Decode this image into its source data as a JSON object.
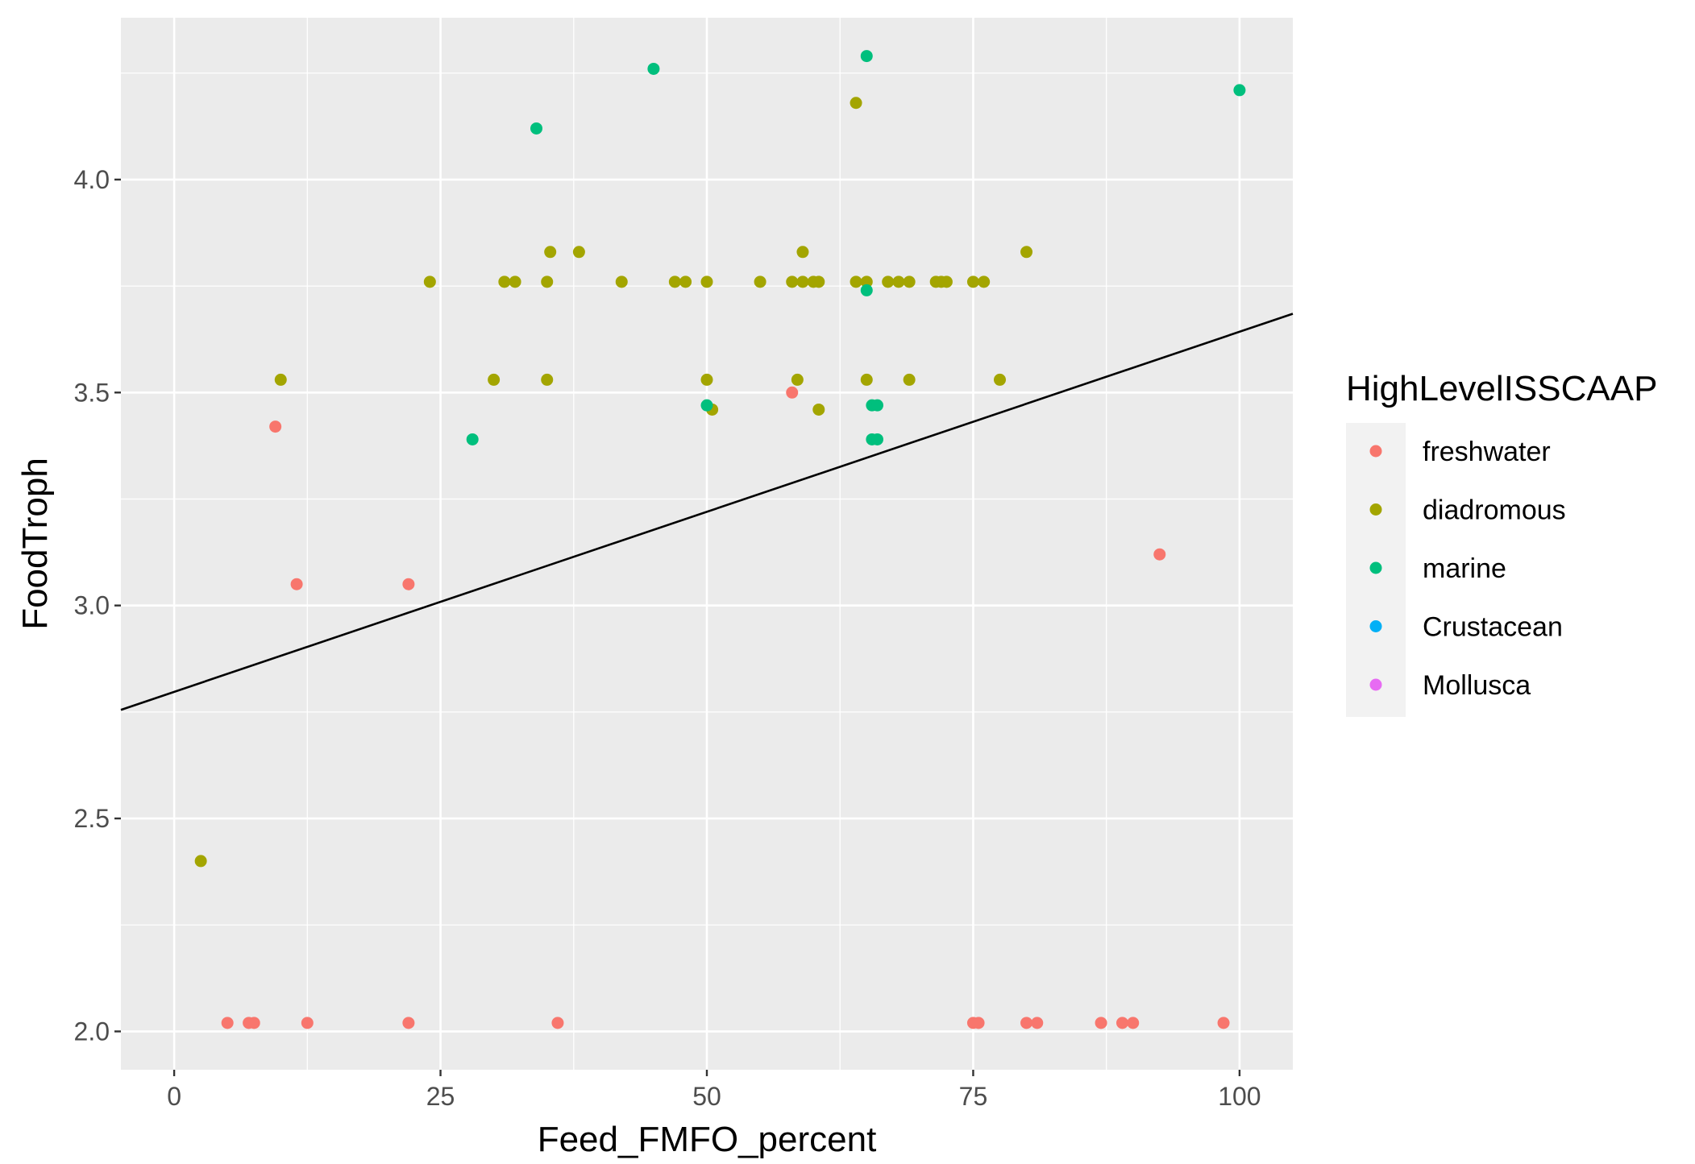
{
  "chart_data": {
    "type": "scatter",
    "xlabel": "Feed_FMFO_percent",
    "ylabel": "FoodTroph",
    "xlim": [
      -5,
      105
    ],
    "ylim": [
      1.91,
      4.38
    ],
    "x_ticks": [
      0,
      25,
      50,
      75,
      100
    ],
    "x_tick_labels": [
      "0",
      "25",
      "50",
      "75",
      "100"
    ],
    "y_ticks": [
      2.0,
      2.5,
      3.0,
      3.5,
      4.0
    ],
    "y_tick_labels": [
      "2.0",
      "2.5",
      "3.0",
      "3.5",
      "4.0"
    ],
    "grid": true,
    "legend": {
      "title": "HighLevelISSCAAP",
      "position": "right",
      "entries": [
        {
          "name": "freshwater",
          "color": "#F8766D"
        },
        {
          "name": "diadromous",
          "color": "#A3A500"
        },
        {
          "name": "marine",
          "color": "#00BF7D"
        },
        {
          "name": "Crustacean",
          "color": "#00B0F6"
        },
        {
          "name": "Mollusca",
          "color": "#E76BF3"
        }
      ]
    },
    "trend_line": {
      "x": [
        -5,
        105
      ],
      "y": [
        2.755,
        3.685
      ],
      "color": "#000000"
    },
    "series": [
      {
        "name": "freshwater",
        "color": "#F8766D",
        "points": [
          [
            9.5,
            3.42
          ],
          [
            11.5,
            3.05
          ],
          [
            22,
            3.05
          ],
          [
            58,
            3.5
          ],
          [
            92.5,
            3.12
          ],
          [
            5,
            2.02
          ],
          [
            7,
            2.02
          ],
          [
            7.5,
            2.02
          ],
          [
            12.5,
            2.02
          ],
          [
            22,
            2.02
          ],
          [
            36,
            2.02
          ],
          [
            75,
            2.02
          ],
          [
            75.5,
            2.02
          ],
          [
            80,
            2.02
          ],
          [
            81,
            2.02
          ],
          [
            87,
            2.02
          ],
          [
            89,
            2.02
          ],
          [
            90,
            2.02
          ],
          [
            98.5,
            2.02
          ]
        ]
      },
      {
        "name": "diadromous",
        "color": "#A3A500",
        "points": [
          [
            2.5,
            2.4
          ],
          [
            10,
            3.53
          ],
          [
            24,
            3.76
          ],
          [
            30,
            3.53
          ],
          [
            31,
            3.76
          ],
          [
            32,
            3.76
          ],
          [
            35,
            3.53
          ],
          [
            35,
            3.76
          ],
          [
            35.3,
            3.83
          ],
          [
            38,
            3.83
          ],
          [
            42,
            3.76
          ],
          [
            47,
            3.76
          ],
          [
            48,
            3.76
          ],
          [
            50,
            3.76
          ],
          [
            50,
            3.53
          ],
          [
            50.5,
            3.46
          ],
          [
            55,
            3.76
          ],
          [
            58,
            3.76
          ],
          [
            58.5,
            3.53
          ],
          [
            59,
            3.76
          ],
          [
            59,
            3.83
          ],
          [
            60,
            3.76
          ],
          [
            60.5,
            3.76
          ],
          [
            60.5,
            3.46
          ],
          [
            64,
            4.18
          ],
          [
            64,
            3.76
          ],
          [
            65,
            3.76
          ],
          [
            65,
            3.53
          ],
          [
            67,
            3.76
          ],
          [
            68,
            3.76
          ],
          [
            69,
            3.76
          ],
          [
            69,
            3.53
          ],
          [
            71.5,
            3.76
          ],
          [
            72,
            3.76
          ],
          [
            72.5,
            3.76
          ],
          [
            75,
            3.76
          ],
          [
            76,
            3.76
          ],
          [
            77.5,
            3.53
          ],
          [
            80,
            3.83
          ]
        ]
      },
      {
        "name": "marine",
        "color": "#00BF7D",
        "points": [
          [
            28,
            3.39
          ],
          [
            34,
            4.12
          ],
          [
            45,
            4.26
          ],
          [
            50,
            3.47
          ],
          [
            65,
            4.29
          ],
          [
            65,
            3.74
          ],
          [
            65.5,
            3.47
          ],
          [
            66,
            3.47
          ],
          [
            65.5,
            3.39
          ],
          [
            66,
            3.39
          ],
          [
            100,
            4.21
          ]
        ]
      }
    ]
  }
}
